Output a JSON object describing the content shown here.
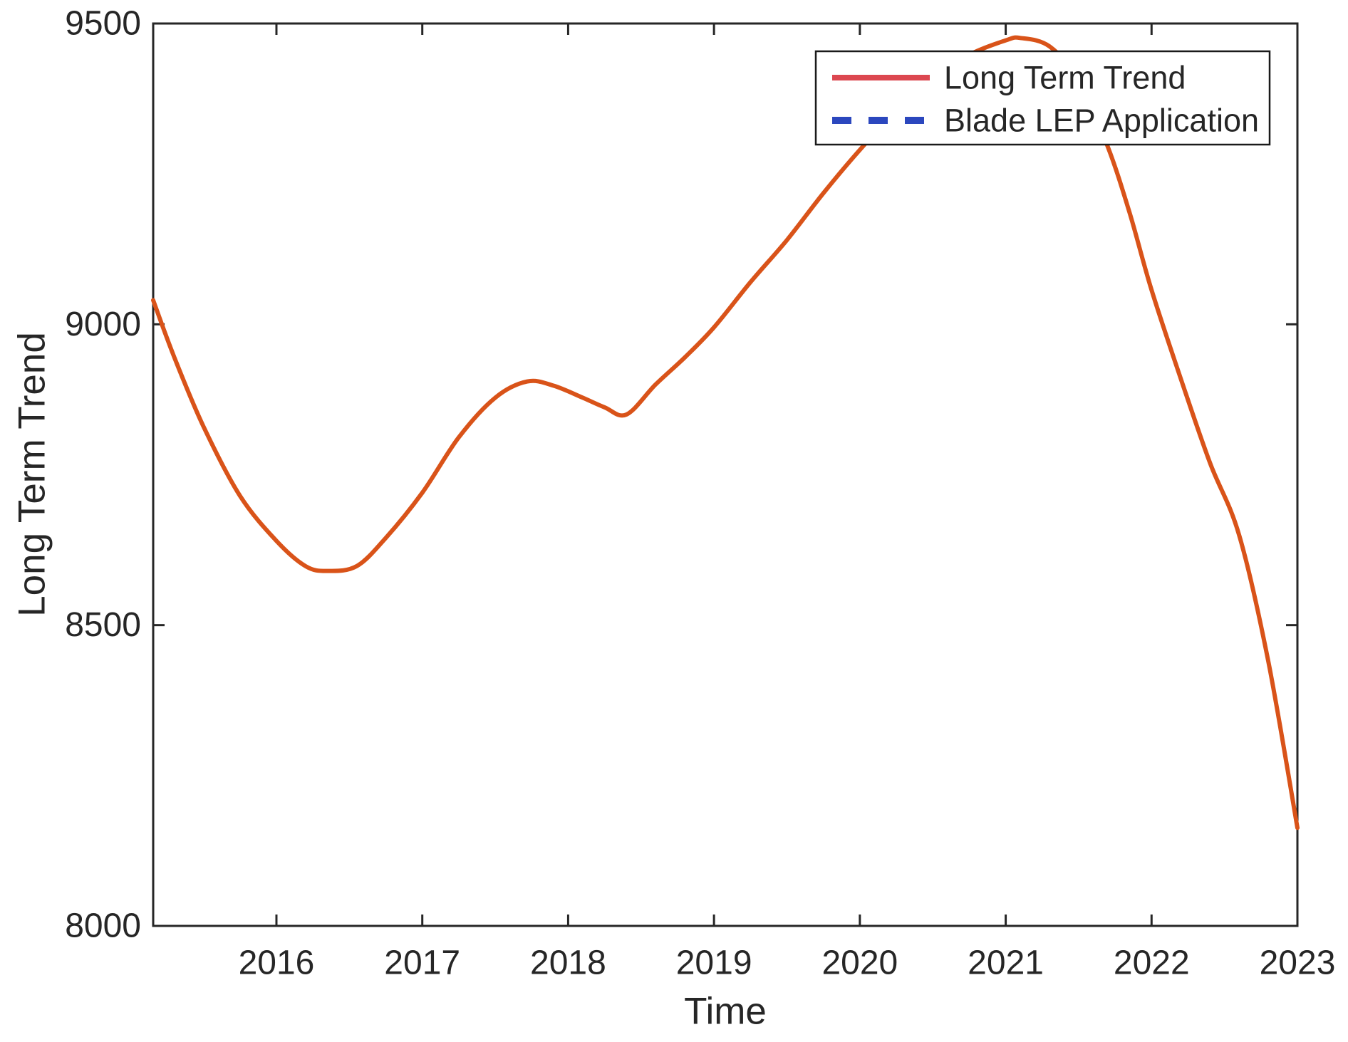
{
  "chart_data": {
    "type": "line",
    "title": "",
    "xlabel": "Time",
    "ylabel": "Long Term Trend",
    "xlim": [
      2015.155,
      2023
    ],
    "ylim": [
      8000,
      9500
    ],
    "x_ticks": [
      2016,
      2017,
      2018,
      2019,
      2020,
      2021,
      2022,
      2023
    ],
    "y_ticks": [
      8000,
      8500,
      9000,
      9500
    ],
    "grid": false,
    "frame": "box-on-mirrored-ticks",
    "legend": {
      "position": "upper right",
      "entries": [
        {
          "label": "Long Term Trend",
          "style": "solid",
          "color": "#DC4750"
        },
        {
          "label": "Blade LEP Application",
          "style": "dashed",
          "color": "#2B47BE"
        }
      ]
    },
    "series": [
      {
        "name": "Long Term Trend",
        "color": "#D95319",
        "style": "solid",
        "line_width": 6,
        "x": [
          2015.155,
          2015.3,
          2015.5,
          2015.75,
          2016.0,
          2016.2,
          2016.35,
          2016.55,
          2016.75,
          2017.0,
          2017.25,
          2017.5,
          2017.72,
          2017.9,
          2018.1,
          2018.25,
          2018.4,
          2018.6,
          2018.8,
          2019.0,
          2019.25,
          2019.5,
          2019.75,
          2020.0,
          2020.25,
          2020.5,
          2020.75,
          2021.0,
          2021.1,
          2021.3,
          2021.5,
          2021.7,
          2021.85,
          2022.0,
          2022.2,
          2022.4,
          2022.6,
          2022.8,
          2023.0
        ],
        "y": [
          9040,
          8945,
          8830,
          8715,
          8640,
          8598,
          8590,
          8598,
          8645,
          8720,
          8812,
          8878,
          8905,
          8898,
          8878,
          8862,
          8850,
          8900,
          8945,
          8995,
          9070,
          9140,
          9218,
          9290,
          9355,
          9408,
          9448,
          9472,
          9476,
          9462,
          9405,
          9295,
          9185,
          9057,
          8910,
          8770,
          8650,
          8440,
          8163
        ]
      }
    ],
    "key_points": {
      "start": {
        "x": 2015.155,
        "y": 9040
      },
      "first_minimum": {
        "x": 2016.35,
        "y": 8590
      },
      "local_maximum": {
        "x": 2017.72,
        "y": 8905
      },
      "local_minimum": {
        "x": 2018.4,
        "y": 8850
      },
      "global_maximum": {
        "x": 2021.1,
        "y": 9476
      },
      "end": {
        "x": 2023.0,
        "y": 8163
      }
    }
  },
  "colors": {
    "axes": "#262626",
    "background": "#ffffff",
    "trend_line": "#D95319",
    "legend_solid": "#DC4750",
    "legend_dashed": "#2B47BE"
  }
}
